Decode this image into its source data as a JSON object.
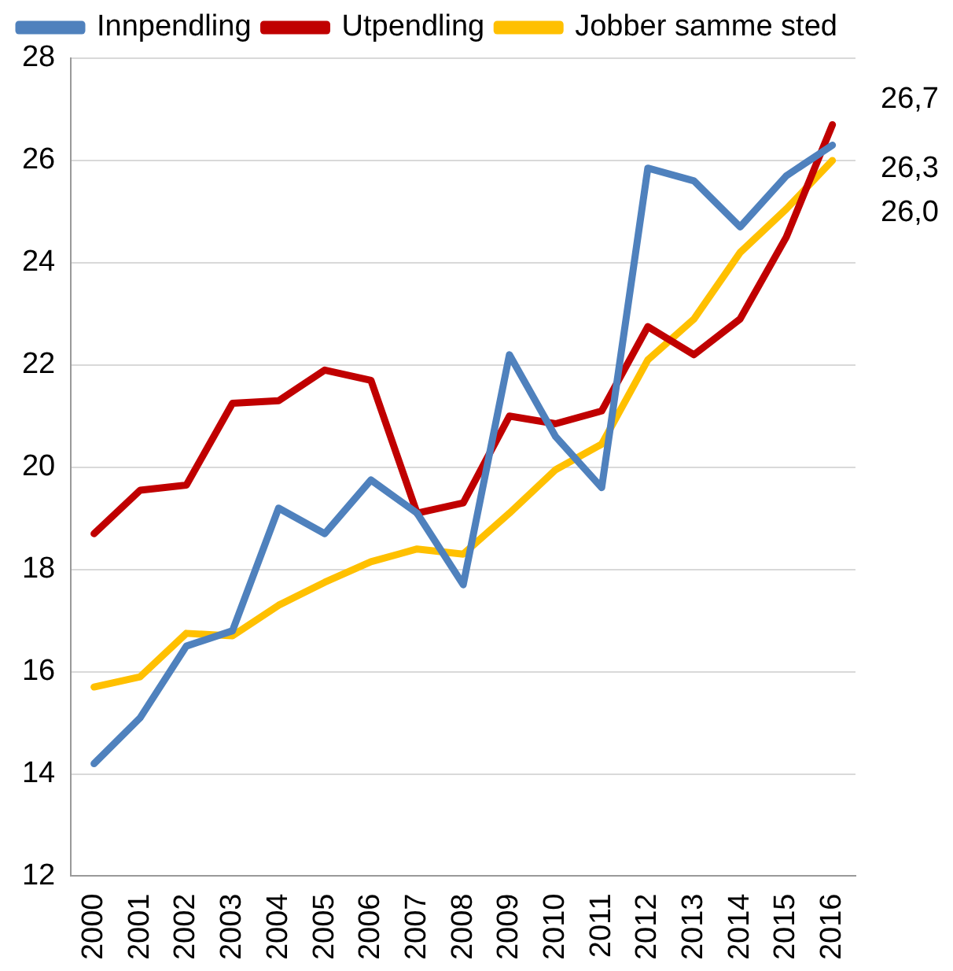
{
  "chart_data": {
    "type": "line",
    "categories": [
      "2000",
      "2001",
      "2002",
      "2003",
      "2004",
      "2005",
      "2006",
      "2007",
      "2008",
      "2009",
      "2010",
      "2011",
      "2012",
      "2013",
      "2014",
      "2015",
      "2016"
    ],
    "series": [
      {
        "name": "Innpendling",
        "color": "#4f81bd",
        "values": [
          14.2,
          15.1,
          16.5,
          16.8,
          19.2,
          18.7,
          19.75,
          19.1,
          17.7,
          22.2,
          20.6,
          19.6,
          25.85,
          25.6,
          24.7,
          25.7,
          26.3
        ],
        "value_labels": [
          null,
          null,
          null,
          null,
          null,
          null,
          null,
          null,
          null,
          null,
          null,
          null,
          null,
          null,
          null,
          null,
          "26,3"
        ]
      },
      {
        "name": "Utpendling",
        "color": "#c00000",
        "values": [
          18.7,
          19.55,
          19.65,
          21.25,
          21.3,
          21.9,
          21.7,
          19.1,
          19.3,
          21.0,
          20.85,
          21.1,
          22.75,
          22.2,
          22.9,
          24.5,
          26.7
        ],
        "value_labels": [
          null,
          null,
          null,
          null,
          null,
          null,
          null,
          null,
          null,
          null,
          null,
          null,
          null,
          null,
          null,
          null,
          "26,7"
        ]
      },
      {
        "name": "Jobber samme sted",
        "color": "#ffc000",
        "values": [
          15.7,
          15.9,
          16.75,
          16.7,
          17.3,
          17.75,
          18.15,
          18.4,
          18.3,
          19.1,
          19.95,
          20.45,
          22.1,
          22.9,
          24.2,
          25.05,
          26.0
        ],
        "value_labels": [
          null,
          null,
          null,
          null,
          null,
          null,
          null,
          null,
          null,
          null,
          null,
          null,
          null,
          null,
          null,
          null,
          "26,0"
        ]
      }
    ],
    "ylim": [
      12,
      28
    ],
    "yticks": [
      12,
      14,
      16,
      18,
      20,
      22,
      24,
      26,
      28
    ],
    "grid": "y",
    "legend": "top",
    "marker": "none",
    "line_style": "solid"
  }
}
